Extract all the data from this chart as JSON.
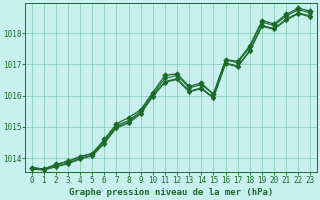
{
  "title": "Graphe pression niveau de la mer (hPa)",
  "background_color": "#c8f0ee",
  "grid_color": "#80c8b4",
  "line_color": "#1a6b2a",
  "marker_color": "#1a6b2a",
  "xlim": [
    -0.5,
    23.5
  ],
  "ylim": [
    1013.55,
    1018.95
  ],
  "yticks": [
    1014,
    1015,
    1016,
    1017,
    1018
  ],
  "xticks": [
    0,
    1,
    2,
    3,
    4,
    5,
    6,
    7,
    8,
    9,
    10,
    11,
    12,
    13,
    14,
    15,
    16,
    17,
    18,
    19,
    20,
    21,
    22,
    23
  ],
  "series1": [
    1013.7,
    1013.65,
    1013.8,
    1013.9,
    1014.05,
    1014.15,
    1014.55,
    1015.05,
    1015.2,
    1015.5,
    1016.05,
    1016.55,
    1016.65,
    1016.25,
    1016.35,
    1016.05,
    1017.15,
    1017.05,
    1017.55,
    1018.35,
    1018.25,
    1018.55,
    1018.75,
    1018.65
  ],
  "series2": [
    1013.7,
    1013.65,
    1013.75,
    1013.85,
    1014.0,
    1014.1,
    1014.5,
    1015.0,
    1015.15,
    1015.45,
    1016.0,
    1016.45,
    1016.55,
    1016.15,
    1016.25,
    1015.95,
    1017.05,
    1016.95,
    1017.45,
    1018.25,
    1018.15,
    1018.45,
    1018.65,
    1018.55
  ],
  "series3": [
    1013.65,
    1013.62,
    1013.72,
    1013.82,
    1013.97,
    1014.07,
    1014.47,
    1014.97,
    1015.12,
    1015.42,
    1015.97,
    1016.42,
    1016.52,
    1016.12,
    1016.22,
    1015.92,
    1017.02,
    1016.92,
    1017.42,
    1018.22,
    1018.12,
    1018.42,
    1018.62,
    1018.52
  ],
  "series_main": [
    1013.7,
    1013.65,
    1013.8,
    1013.9,
    1014.05,
    1014.15,
    1014.6,
    1015.1,
    1015.3,
    1015.55,
    1016.1,
    1016.65,
    1016.7,
    1016.3,
    1016.4,
    1016.05,
    1017.15,
    1017.1,
    1017.6,
    1018.4,
    1018.3,
    1018.6,
    1018.8,
    1018.7
  ],
  "title_fontsize": 6.5,
  "tick_fontsize": 5.5
}
